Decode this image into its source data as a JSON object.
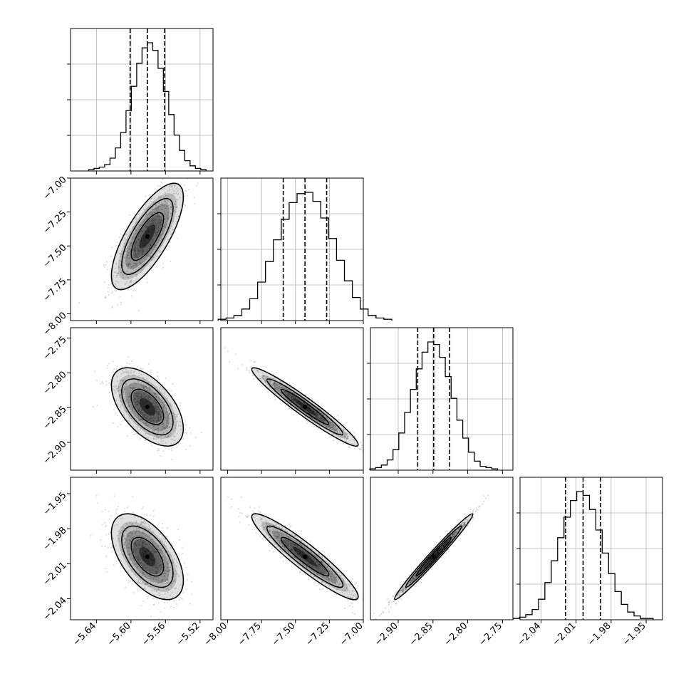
{
  "chart_data": {
    "type": "corner",
    "grid": true,
    "parameters": [
      {
        "xlim": [
          -5.67,
          -5.505
        ],
        "ticks": [
          -5.64,
          -5.6,
          -5.56,
          -5.52
        ],
        "tick_labels": [
          "−5.64",
          "−5.60",
          "−5.56",
          "−5.52"
        ],
        "center": -5.581,
        "quantiles": [
          -5.601,
          -5.581,
          -5.561
        ],
        "sd": 0.017
      },
      {
        "xlim": [
          -8.05,
          -7.0
        ],
        "ticks": [
          -8.0,
          -7.75,
          -7.5,
          -7.25,
          -7.0
        ],
        "tick_labels": [
          "−8.00",
          "−7.75",
          "−7.50",
          "−7.25",
          "−7.00"
        ],
        "center": -7.43,
        "quantiles": [
          -7.59,
          -7.43,
          -7.27
        ],
        "sd": 0.16
      },
      {
        "xlim": [
          -2.94,
          -2.735
        ],
        "ticks": [
          -2.9,
          -2.85,
          -2.8,
          -2.75
        ],
        "tick_labels": [
          "−2.90",
          "−2.85",
          "−2.80",
          "−2.75"
        ],
        "center": -2.849,
        "quantiles": [
          -2.872,
          -2.849,
          -2.826
        ],
        "sd": 0.023
      },
      {
        "xlim": [
          -2.058,
          -1.936
        ],
        "ticks": [
          -2.04,
          -2.01,
          -1.98,
          -1.95
        ],
        "tick_labels": [
          "−2.04",
          "−2.01",
          "−1.98",
          "−1.95"
        ],
        "center": -2.004,
        "quantiles": [
          -2.019,
          -2.004,
          -1.989
        ],
        "sd": 0.015
      }
    ],
    "histograms": [
      [
        1,
        2,
        3,
        5,
        10,
        18,
        30,
        47,
        66,
        84,
        96,
        100,
        94,
        80,
        62,
        44,
        28,
        16,
        8,
        4,
        2,
        1
      ],
      [
        1,
        2,
        4,
        9,
        17,
        30,
        46,
        63,
        79,
        92,
        99,
        100,
        93,
        80,
        64,
        47,
        31,
        18,
        9,
        4,
        2,
        1
      ],
      [
        1,
        2,
        4,
        8,
        16,
        29,
        45,
        63,
        79,
        92,
        100,
        98,
        88,
        73,
        56,
        39,
        25,
        14,
        7,
        3,
        2,
        1
      ],
      [
        1,
        2,
        4,
        8,
        16,
        29,
        46,
        64,
        80,
        93,
        100,
        97,
        86,
        70,
        52,
        36,
        22,
        12,
        6,
        3,
        1,
        1
      ]
    ],
    "correlations": [
      {
        "i": 1,
        "j": 0,
        "r": 0.74
      },
      {
        "i": 2,
        "j": 0,
        "r": -0.55
      },
      {
        "i": 2,
        "j": 1,
        "r": -0.96
      },
      {
        "i": 3,
        "j": 0,
        "r": -0.55
      },
      {
        "i": 3,
        "j": 1,
        "r": -0.93
      },
      {
        "i": 3,
        "j": 2,
        "r": 0.985
      }
    ]
  }
}
